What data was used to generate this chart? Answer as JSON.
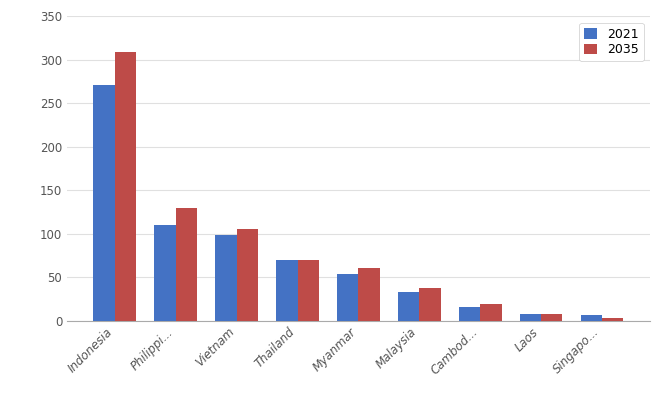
{
  "categories": [
    "Indonesia",
    "Philippi...",
    "Vietnam",
    "Thailand",
    "Myanmar",
    "Malaysia",
    "Cambod...",
    "Laos",
    "Singapo..."
  ],
  "values_2021": [
    271,
    110,
    98,
    70,
    54,
    33,
    16,
    7,
    6
  ],
  "values_2035": [
    309,
    130,
    105,
    70,
    60,
    37,
    19,
    8,
    3
  ],
  "color_2021": "#4472C4",
  "color_2035": "#BE4B48",
  "legend_2021": "2021",
  "legend_2035": "2035",
  "ylim": [
    0,
    350
  ],
  "yticks": [
    0,
    50,
    100,
    150,
    200,
    250,
    300,
    350
  ],
  "background_color": "#FFFFFF",
  "grid_color": "#E0E0E0",
  "bar_width": 0.35
}
